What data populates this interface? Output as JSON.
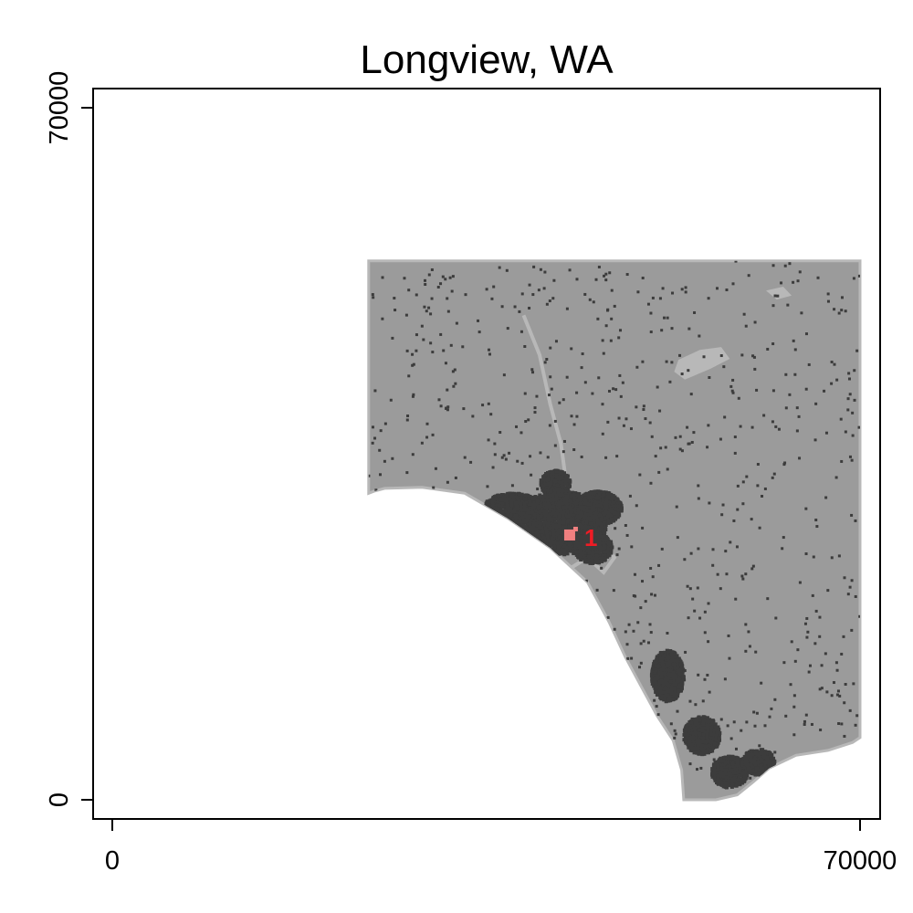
{
  "title": "Longview, WA",
  "axes": {
    "x": {
      "min": 0,
      "max": 70000,
      "ticks": [
        0,
        70000
      ],
      "tick_labels": [
        "0",
        "70000"
      ]
    },
    "y": {
      "min": 0,
      "max": 70000,
      "ticks": [
        0,
        70000
      ],
      "tick_labels": [
        "0",
        "70000"
      ]
    }
  },
  "colors": {
    "land": "#9b9b9b",
    "urban": "#3c3c3c",
    "water": "#b8b8b8",
    "marker": "#ee1c25",
    "marker_light": "#f08080",
    "frame": "#000000"
  },
  "map_data": {
    "region": [
      [
        24000,
        54500
      ],
      [
        70000,
        54500
      ],
      [
        70000,
        6300
      ],
      [
        69300,
        5800
      ],
      [
        67000,
        5000
      ],
      [
        64000,
        4500
      ],
      [
        61500,
        3200
      ],
      [
        60000,
        1800
      ],
      [
        58500,
        500
      ],
      [
        56500,
        0
      ],
      [
        53500,
        0
      ],
      [
        53300,
        3000
      ],
      [
        52500,
        6000
      ],
      [
        51000,
        8500
      ],
      [
        49500,
        11500
      ],
      [
        48000,
        14500
      ],
      [
        46500,
        18000
      ],
      [
        44500,
        22000
      ],
      [
        41000,
        25500
      ],
      [
        37000,
        28500
      ],
      [
        33000,
        31000
      ],
      [
        29000,
        31600
      ],
      [
        25500,
        31500
      ],
      [
        24500,
        31200
      ],
      [
        24000,
        31000
      ]
    ],
    "water_polys": [
      [
        [
          53000,
          44500
        ],
        [
          55000,
          45500
        ],
        [
          57000,
          45800
        ],
        [
          57800,
          44600
        ],
        [
          56000,
          43600
        ],
        [
          53600,
          42500
        ],
        [
          52600,
          43300
        ]
      ],
      [
        [
          61200,
          51500
        ],
        [
          62800,
          51900
        ],
        [
          63600,
          51000
        ],
        [
          62200,
          50600
        ]
      ]
    ],
    "river_lines": [
      [
        [
          38500,
          49000
        ],
        [
          40000,
          45000
        ],
        [
          41000,
          40000
        ],
        [
          42000,
          36000
        ],
        [
          42500,
          32000
        ],
        [
          43000,
          28000
        ],
        [
          44000,
          25000
        ]
      ],
      [
        [
          45500,
          26500
        ],
        [
          47000,
          24500
        ],
        [
          46000,
          23000
        ],
        [
          44500,
          24500
        ],
        [
          43000,
          23500
        ]
      ]
    ],
    "urban_clusters": [
      {
        "x": 42000,
        "y": 28000,
        "rx": 4300,
        "ry": 3200
      },
      {
        "x": 37500,
        "y": 29500,
        "rx": 2700,
        "ry": 1500
      },
      {
        "x": 45500,
        "y": 29500,
        "rx": 2200,
        "ry": 1700
      },
      {
        "x": 45000,
        "y": 25500,
        "rx": 1800,
        "ry": 1600
      },
      {
        "x": 41500,
        "y": 32000,
        "rx": 1400,
        "ry": 1300
      },
      {
        "x": 57800,
        "y": 2800,
        "rx": 1700,
        "ry": 1600
      },
      {
        "x": 60500,
        "y": 3800,
        "rx": 1500,
        "ry": 1300
      },
      {
        "x": 55200,
        "y": 6500,
        "rx": 1700,
        "ry": 1900
      },
      {
        "x": 52000,
        "y": 12500,
        "rx": 1500,
        "ry": 2600
      }
    ],
    "marker": {
      "x": 43500,
      "y": 26600,
      "label": "1"
    }
  }
}
